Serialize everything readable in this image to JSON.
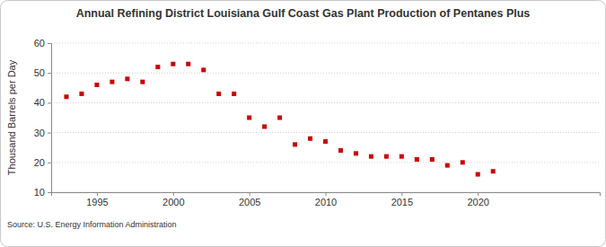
{
  "chart_data": {
    "type": "scatter",
    "title": "Annual Refining District Louisiana Gulf Coast Gas Plant Production of Pentanes Plus",
    "y_label": "Thousand Barrels per Day",
    "annotations": [
      "Source: U.S. Energy Information Administration"
    ],
    "x": [
      1993,
      1994,
      1995,
      1996,
      1997,
      1998,
      1999,
      2000,
      2001,
      2002,
      2003,
      2004,
      2005,
      2006,
      2007,
      2008,
      2009,
      2010,
      2011,
      2012,
      2013,
      2014,
      2015,
      2016,
      2017,
      2018,
      2019,
      2020,
      2021
    ],
    "values": [
      42,
      43,
      46,
      47,
      48,
      47,
      52,
      53,
      53,
      51,
      43,
      43,
      35,
      32,
      35,
      26,
      28,
      27,
      24,
      23,
      22,
      22,
      22,
      21,
      21,
      19,
      20,
      16,
      17
    ],
    "color": "#cc0000",
    "marker": "square",
    "xlim": [
      1992,
      2028
    ],
    "xticks": [
      1995,
      2000,
      2005,
      2010,
      2015,
      2020
    ],
    "ylim": [
      10,
      60
    ],
    "yticks": [
      10,
      20,
      30,
      40,
      50,
      60
    ],
    "grid": true
  }
}
